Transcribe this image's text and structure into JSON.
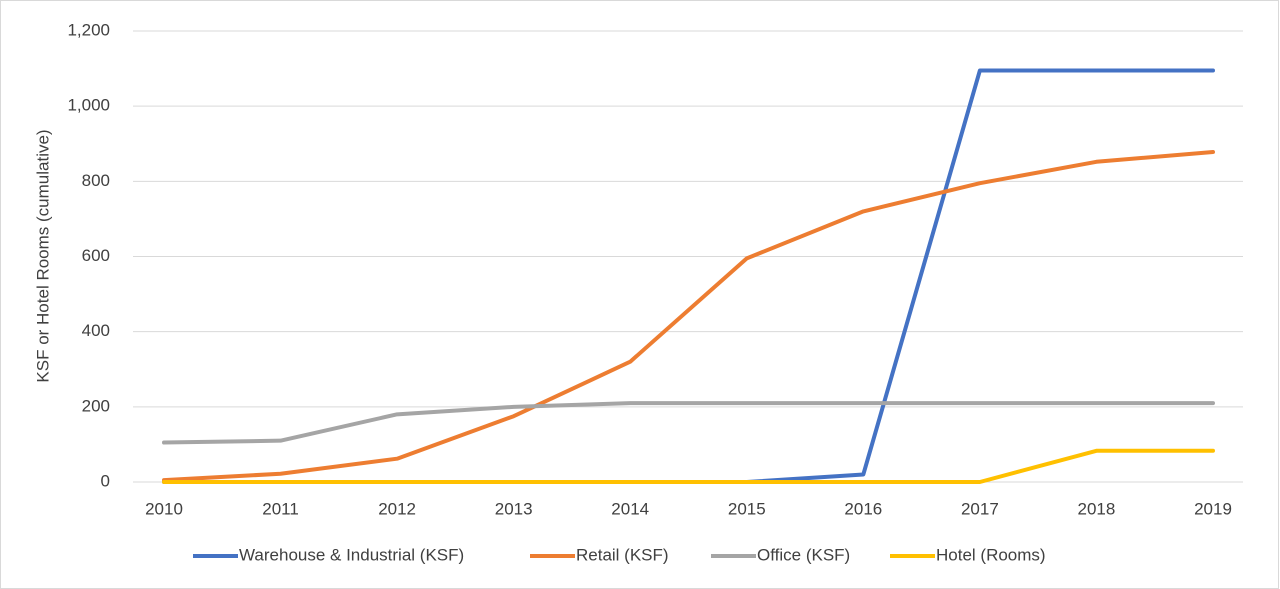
{
  "chart_data": {
    "type": "line",
    "y_label": "KSF or Hotel Rooms (cumulative)",
    "categories": [
      "2010",
      "2011",
      "2012",
      "2013",
      "2014",
      "2015",
      "2016",
      "2017",
      "2018",
      "2019"
    ],
    "series": [
      {
        "name": "Warehouse & Industrial (KSF)",
        "color": "#4472c4",
        "values": [
          0,
          0,
          0,
          0,
          0,
          0,
          20,
          1095,
          1095,
          1095
        ]
      },
      {
        "name": "Retail (KSF)",
        "color": "#ed7d31",
        "values": [
          5,
          22,
          62,
          175,
          320,
          595,
          720,
          795,
          852,
          878
        ]
      },
      {
        "name": "Office (KSF)",
        "color": "#a5a5a5",
        "values": [
          105,
          110,
          180,
          200,
          210,
          210,
          210,
          210,
          210,
          210
        ]
      },
      {
        "name": "Hotel (Rooms)",
        "color": "#ffc000",
        "values": [
          0,
          0,
          0,
          0,
          0,
          0,
          0,
          0,
          83,
          83
        ]
      }
    ],
    "ylim": [
      0,
      1200
    ],
    "yticks": [
      0,
      200,
      400,
      600,
      800,
      {
        "value": 1000,
        "label": "1,000"
      },
      {
        "value": 1200,
        "label": "1,200"
      }
    ],
    "grid": true,
    "legend": "bottom"
  }
}
